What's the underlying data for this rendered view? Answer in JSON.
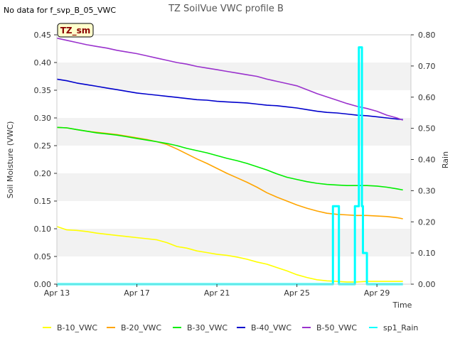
{
  "chart_data": {
    "type": "line",
    "title": "TZ SoilVue VWC profile B",
    "no_data_note": "No data for f_svp_B_05_VWC",
    "badge": "TZ_sm",
    "xlabel": "Time",
    "ylabel": "Soil Moisture (VWC)",
    "y2label": "Rain",
    "xlim": [
      0,
      17.7
    ],
    "ylim": [
      0.0,
      0.45
    ],
    "y2lim": [
      0.0,
      0.8
    ],
    "x_ticks": [
      0,
      4,
      8,
      12,
      16
    ],
    "x_tick_labels": [
      "Apr 13",
      "Apr 17",
      "Apr 21",
      "Apr 25",
      "Apr 29"
    ],
    "y_tick_labels": [
      "0.00",
      "0.05",
      "0.10",
      "0.15",
      "0.20",
      "0.25",
      "0.30",
      "0.35",
      "0.40",
      "0.45"
    ],
    "y_ticks": [
      0.0,
      0.05,
      0.1,
      0.15,
      0.2,
      0.25,
      0.3,
      0.35,
      0.4,
      0.45
    ],
    "y2_tick_labels": [
      "0.00",
      "0.10",
      "0.20",
      "0.30",
      "0.40",
      "0.50",
      "0.60",
      "0.70",
      "0.80"
    ],
    "y2_ticks": [
      0.0,
      0.1,
      0.2,
      0.3,
      0.4,
      0.5,
      0.6,
      0.7,
      0.8
    ],
    "grid": "horizontal bands",
    "legend_position": "bottom",
    "series": [
      {
        "name": "B-10_VWC",
        "color": "#ffff00",
        "axis": "left",
        "x": [
          0.0,
          0.5,
          1.0,
          1.5,
          2.0,
          2.5,
          3.0,
          3.5,
          4.0,
          4.5,
          5.0,
          5.5,
          6.0,
          6.5,
          7.0,
          7.5,
          8.0,
          8.5,
          9.0,
          9.5,
          10.0,
          10.5,
          11.0,
          11.5,
          12.0,
          12.5,
          13.0,
          13.5,
          14.0,
          14.5,
          15.0,
          15.5,
          16.0,
          16.5,
          17.0,
          17.3
        ],
        "y": [
          0.104,
          0.098,
          0.097,
          0.095,
          0.092,
          0.09,
          0.088,
          0.086,
          0.084,
          0.082,
          0.08,
          0.075,
          0.068,
          0.065,
          0.06,
          0.057,
          0.054,
          0.052,
          0.049,
          0.045,
          0.04,
          0.036,
          0.03,
          0.024,
          0.017,
          0.012,
          0.008,
          0.006,
          0.005,
          0.004,
          0.004,
          0.005,
          0.005,
          0.005,
          0.005,
          0.005
        ]
      },
      {
        "name": "B-20_VWC",
        "color": "#ffa500",
        "axis": "left",
        "x": [
          0.0,
          0.5,
          1.0,
          1.5,
          2.0,
          2.5,
          3.0,
          3.5,
          4.0,
          4.5,
          5.0,
          5.5,
          6.0,
          6.5,
          7.0,
          7.5,
          8.0,
          8.5,
          9.0,
          9.5,
          10.0,
          10.5,
          11.0,
          11.5,
          12.0,
          12.5,
          13.0,
          13.5,
          14.0,
          14.5,
          15.0,
          15.5,
          16.0,
          16.5,
          17.0,
          17.3
        ],
        "y": [
          0.283,
          0.282,
          0.279,
          0.276,
          0.274,
          0.272,
          0.27,
          0.267,
          0.264,
          0.261,
          0.257,
          0.252,
          0.244,
          0.235,
          0.226,
          0.218,
          0.209,
          0.2,
          0.192,
          0.184,
          0.175,
          0.165,
          0.157,
          0.15,
          0.143,
          0.137,
          0.132,
          0.128,
          0.126,
          0.125,
          0.124,
          0.124,
          0.123,
          0.122,
          0.12,
          0.118
        ]
      },
      {
        "name": "B-30_VWC",
        "color": "#00ee00",
        "axis": "left",
        "x": [
          0.0,
          0.5,
          1.0,
          1.5,
          2.0,
          2.5,
          3.0,
          3.5,
          4.0,
          4.5,
          5.0,
          5.5,
          6.0,
          6.5,
          7.0,
          7.5,
          8.0,
          8.5,
          9.0,
          9.5,
          10.0,
          10.5,
          11.0,
          11.5,
          12.0,
          12.5,
          13.0,
          13.5,
          14.0,
          14.5,
          15.0,
          15.5,
          16.0,
          16.5,
          17.0,
          17.3
        ],
        "y": [
          0.283,
          0.282,
          0.279,
          0.276,
          0.273,
          0.271,
          0.269,
          0.266,
          0.263,
          0.26,
          0.257,
          0.254,
          0.25,
          0.245,
          0.241,
          0.237,
          0.232,
          0.227,
          0.223,
          0.218,
          0.212,
          0.206,
          0.199,
          0.193,
          0.189,
          0.185,
          0.182,
          0.18,
          0.179,
          0.178,
          0.178,
          0.178,
          0.177,
          0.175,
          0.172,
          0.17
        ]
      },
      {
        "name": "B-40_VWC",
        "color": "#0000cc",
        "axis": "left",
        "x": [
          0.0,
          0.5,
          1.0,
          1.5,
          2.0,
          2.5,
          3.0,
          3.5,
          4.0,
          4.5,
          5.0,
          5.5,
          6.0,
          6.5,
          7.0,
          7.5,
          8.0,
          8.5,
          9.0,
          9.5,
          10.0,
          10.5,
          11.0,
          11.5,
          12.0,
          12.5,
          13.0,
          13.5,
          14.0,
          14.5,
          15.0,
          15.5,
          16.0,
          16.5,
          17.0,
          17.3
        ],
        "y": [
          0.37,
          0.367,
          0.363,
          0.36,
          0.357,
          0.354,
          0.351,
          0.348,
          0.345,
          0.343,
          0.341,
          0.339,
          0.337,
          0.335,
          0.333,
          0.332,
          0.33,
          0.329,
          0.328,
          0.327,
          0.325,
          0.323,
          0.322,
          0.32,
          0.318,
          0.315,
          0.312,
          0.31,
          0.309,
          0.307,
          0.305,
          0.304,
          0.302,
          0.3,
          0.298,
          0.297
        ]
      },
      {
        "name": "B-50_VWC",
        "color": "#9a32cd",
        "axis": "left",
        "x": [
          0.0,
          0.5,
          1.0,
          1.5,
          2.0,
          2.5,
          3.0,
          3.5,
          4.0,
          4.5,
          5.0,
          5.5,
          6.0,
          6.5,
          7.0,
          7.5,
          8.0,
          8.5,
          9.0,
          9.5,
          10.0,
          10.5,
          11.0,
          11.5,
          12.0,
          12.5,
          13.0,
          13.5,
          14.0,
          14.5,
          15.0,
          15.5,
          16.0,
          16.5,
          17.0,
          17.3
        ],
        "y": [
          0.444,
          0.44,
          0.436,
          0.432,
          0.429,
          0.426,
          0.422,
          0.419,
          0.416,
          0.412,
          0.408,
          0.404,
          0.4,
          0.397,
          0.393,
          0.39,
          0.387,
          0.384,
          0.381,
          0.378,
          0.375,
          0.37,
          0.366,
          0.362,
          0.358,
          0.351,
          0.344,
          0.338,
          0.332,
          0.326,
          0.321,
          0.317,
          0.312,
          0.305,
          0.3,
          0.296
        ]
      },
      {
        "name": "sp1_Rain",
        "color": "#00ffff",
        "axis": "right",
        "x": [
          0.0,
          13.8,
          13.8,
          14.1,
          14.1,
          14.9,
          14.9,
          15.1,
          15.1,
          15.25,
          15.25,
          15.3,
          15.3,
          15.5,
          15.5,
          17.3
        ],
        "y": [
          0.0,
          0.0,
          0.25,
          0.25,
          0.0,
          0.0,
          0.25,
          0.25,
          0.76,
          0.76,
          0.25,
          0.25,
          0.1,
          0.1,
          0.0,
          0.0
        ]
      }
    ]
  }
}
